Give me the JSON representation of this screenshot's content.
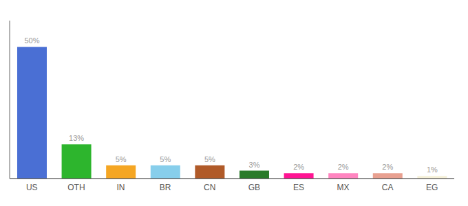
{
  "chart_data": {
    "type": "bar",
    "categories": [
      "US",
      "OTH",
      "IN",
      "BR",
      "CN",
      "GB",
      "ES",
      "MX",
      "CA",
      "EG"
    ],
    "values": [
      50,
      13,
      5,
      5,
      5,
      3,
      2,
      2,
      2,
      1
    ],
    "value_labels": [
      "50%",
      "13%",
      "5%",
      "5%",
      "5%",
      "3%",
      "2%",
      "2%",
      "2%",
      "1%"
    ],
    "colors": [
      "#4A6FD4",
      "#2DB52D",
      "#F5A623",
      "#87CEEB",
      "#B05A28",
      "#2A7A2A",
      "#FF1493",
      "#FF85C0",
      "#E8A090",
      "#F5F0D8"
    ],
    "ylim": [
      0,
      60
    ],
    "grid": false,
    "data_labels": true,
    "tick_labels": "x"
  }
}
